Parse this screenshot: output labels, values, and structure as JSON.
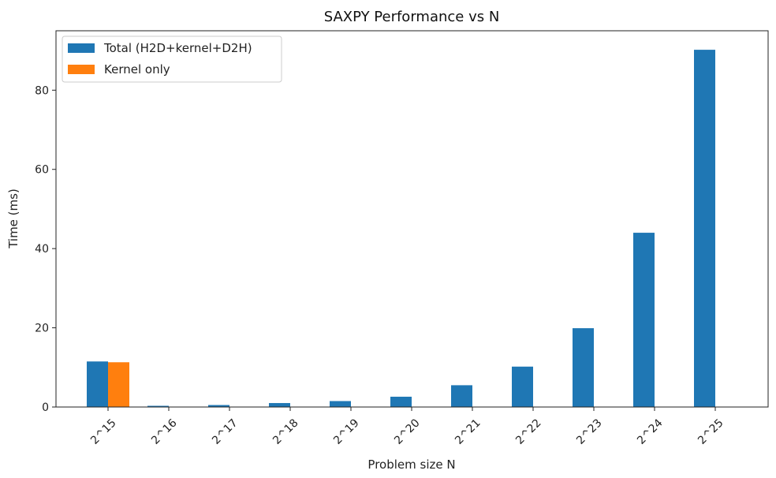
{
  "chart_data": {
    "type": "bar",
    "title": "SAXPY Performance vs N",
    "xlabel": "Problem size N",
    "ylabel": "Time (ms)",
    "categories": [
      "2^15",
      "2^16",
      "2^17",
      "2^18",
      "2^19",
      "2^20",
      "2^21",
      "2^22",
      "2^23",
      "2^24",
      "2^25"
    ],
    "series": [
      {
        "name": "Total (H2D+kernel+D2H)",
        "color": "#1f77b4",
        "values": [
          11.5,
          0.3,
          0.5,
          1.0,
          1.5,
          2.6,
          5.5,
          10.2,
          19.9,
          44.0,
          90.2
        ]
      },
      {
        "name": "Kernel only",
        "color": "#ff7f0e",
        "values": [
          11.3,
          0.01,
          0.01,
          0.01,
          0.01,
          0.01,
          0.01,
          0.01,
          0.01,
          0.01,
          0.01
        ]
      }
    ],
    "ylim": [
      0,
      95
    ],
    "yticks": [
      0,
      20,
      40,
      60,
      80
    ],
    "legend_position": "top-left",
    "grid": false
  }
}
